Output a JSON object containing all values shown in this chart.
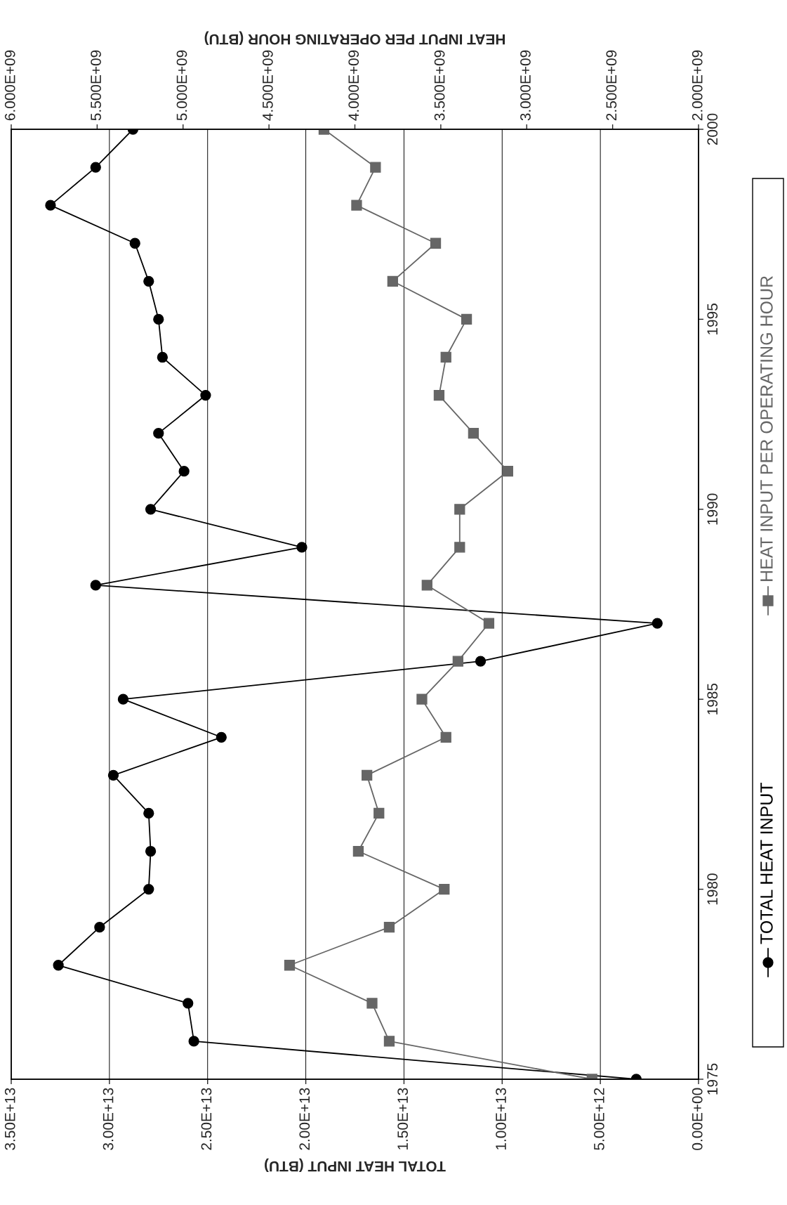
{
  "chart_data": {
    "type": "line",
    "xlabel": "TOTAL HEAT INPUT (BTU)",
    "x2label": "HEAT INPUT PER OPERATING HOUR (BTU)",
    "series": [
      {
        "name": "TOTAL HEAT INPUT",
        "color": "#000000",
        "marker": "circle",
        "x": [
          3170000000000.0,
          25700000000000.0,
          26000000000000.0,
          32600000000000.0,
          30500000000000.0,
          28000000000000.0,
          27900000000000.0,
          28000000000000.0,
          29800000000000.0,
          24300000000000.0,
          29300000000000.0,
          11100000000000.0,
          2100000000000.0,
          30700000000000.0,
          20200000000000.0,
          27900000000000.0,
          26200000000000.0,
          27500000000000.0,
          25100000000000.0,
          27300000000000.0,
          27500000000000.0,
          28000000000000.0,
          28700000000000.0,
          33000000000000.0,
          30700000000000.0,
          28800000000000.0
        ],
        "values": [
          1975,
          1976,
          1977,
          1978,
          1979,
          1980,
          1981,
          1982,
          1983,
          1984,
          1985,
          1986,
          1987,
          1988,
          1989,
          1990,
          1991,
          1992,
          1993,
          1994,
          1995,
          1996,
          1997,
          1998,
          1999,
          2000
        ]
      },
      {
        "name": "HEAT INPUT PER OPERATING HOUR",
        "color": "#666666",
        "marker": "square",
        "axis": "x2",
        "x": [
          2620000000.0,
          3800000000.0,
          3900000000.0,
          4380000000.0,
          3800000000.0,
          3480000000.0,
          3980000000.0,
          3860000000.0,
          3930000000.0,
          3470000000.0,
          3610000000.0,
          3400000000.0,
          3220000000.0,
          3580000000.0,
          3390000000.0,
          3390000000.0,
          3110000000.0,
          3310000000.0,
          3510000000.0,
          3470000000.0,
          3350000000.0,
          3780000000.0,
          3530000000.0,
          3990000000.0,
          3880000000.0,
          4180000000.0
        ],
        "values": [
          1975,
          1976,
          1977,
          1978,
          1979,
          1980,
          1981,
          1982,
          1983,
          1984,
          1985,
          1986,
          1987,
          1988,
          1989,
          1990,
          1991,
          1992,
          1993,
          1994,
          1995,
          1996,
          1997,
          1998,
          1999,
          2000
        ]
      }
    ],
    "ylim": [
      1975,
      2000
    ],
    "yticks": [
      1975,
      1980,
      1985,
      1990,
      1995,
      2000
    ],
    "xlim": [
      35000000000000.0,
      0
    ],
    "xticks": [
      {
        "value": 0,
        "label": "0.00E+00"
      },
      {
        "value": 5000000000000.0,
        "label": "5.00E+12"
      },
      {
        "value": 10000000000000.0,
        "label": "1.00E+13"
      },
      {
        "value": 15000000000000.0,
        "label": "1.50E+13"
      },
      {
        "value": 20000000000000.0,
        "label": "2.00E+13"
      },
      {
        "value": 25000000000000.0,
        "label": "2.50E+13"
      },
      {
        "value": 30000000000000.0,
        "label": "3.00E+13"
      },
      {
        "value": 35000000000000.0,
        "label": "3.50E+13"
      }
    ],
    "x2lim": [
      6000000000.0,
      2000000000.0
    ],
    "x2ticks": [
      {
        "value": 2000000000.0,
        "label": "2.000E+09"
      },
      {
        "value": 2500000000.0,
        "label": "2.500E+09"
      },
      {
        "value": 3000000000.0,
        "label": "3.000E+09"
      },
      {
        "value": 3500000000.0,
        "label": "3.500E+09"
      },
      {
        "value": 4000000000.0,
        "label": "4.000E+09"
      },
      {
        "value": 4500000000.0,
        "label": "4.500E+09"
      },
      {
        "value": 5000000000.0,
        "label": "5.000E+09"
      },
      {
        "value": 5500000000.0,
        "label": "5.500E+09"
      },
      {
        "value": 6000000000.0,
        "label": "6.000E+09"
      }
    ],
    "grid": "x",
    "legend": "right"
  }
}
